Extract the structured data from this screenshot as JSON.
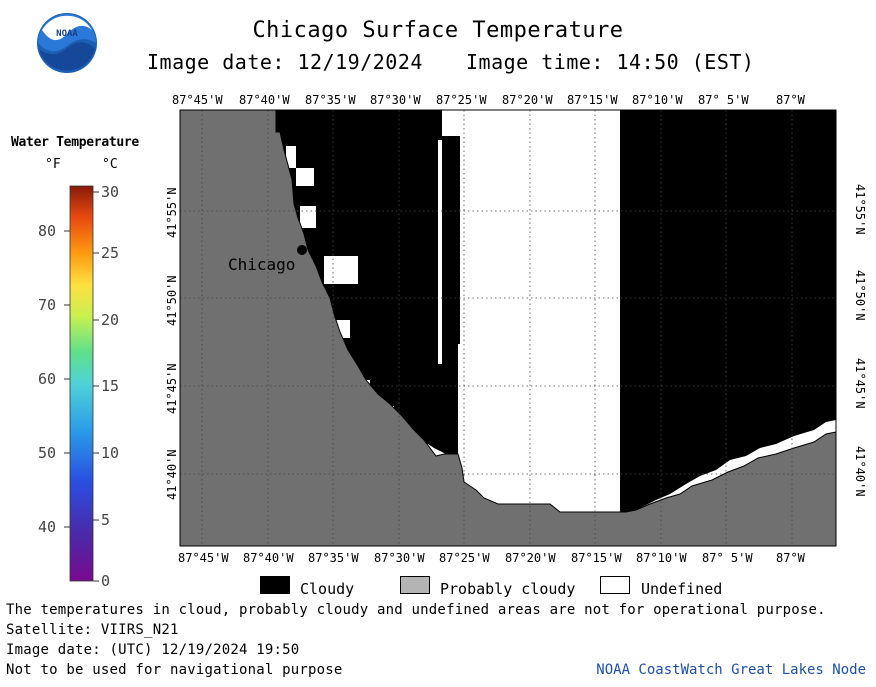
{
  "header": {
    "title": "Chicago Surface Temperature",
    "image_date": "Image date: 12/19/2024",
    "image_time": "Image time: 14:50 (EST)"
  },
  "logo": {
    "text": "NOAA",
    "icon": "noaa-logo"
  },
  "legend": {
    "title": "Water Temperature",
    "unit_f": "°F",
    "unit_c": "°C",
    "f_ticks": [
      "40",
      "50",
      "60",
      "70",
      "80"
    ],
    "c_ticks": [
      "0",
      "5",
      "10",
      "15",
      "20",
      "25",
      "30"
    ]
  },
  "map": {
    "top_labels": [
      "87°45'W",
      "87°40'W",
      "87°35'W",
      "87°30'W",
      "87°25'W",
      "87°20'W",
      "87°15'W",
      "87°10'W",
      "87° 5'W",
      "87°W"
    ],
    "bottom_labels": [
      "87°45'W",
      "87°40'W",
      "87°35'W",
      "87°30'W",
      "87°25'W",
      "87°20'W",
      "87°15'W",
      "87°10'W",
      "87° 5'W",
      "87°W"
    ],
    "lat_labels": [
      "41°55'N",
      "41°50'N",
      "41°45'N",
      "41°40'N"
    ],
    "city": "Chicago",
    "colors": {
      "land": "#707070",
      "cloud": "#000000",
      "undefined": "#ffffff"
    }
  },
  "categories": {
    "cloudy": "Cloudy",
    "probably_cloudy": "Probably cloudy",
    "undefined": "Undefined"
  },
  "footer": {
    "note": "The temperatures in cloud, probably cloudy and undefined areas are not for operational purpose.",
    "satellite": "Satellite: VIIRS_N21",
    "utc_date": "Image date: (UTC) 12/19/2024  19:50",
    "nav_warning": "Not to be used for navigational purpose",
    "credit": "NOAA CoastWatch Great Lakes Node"
  }
}
